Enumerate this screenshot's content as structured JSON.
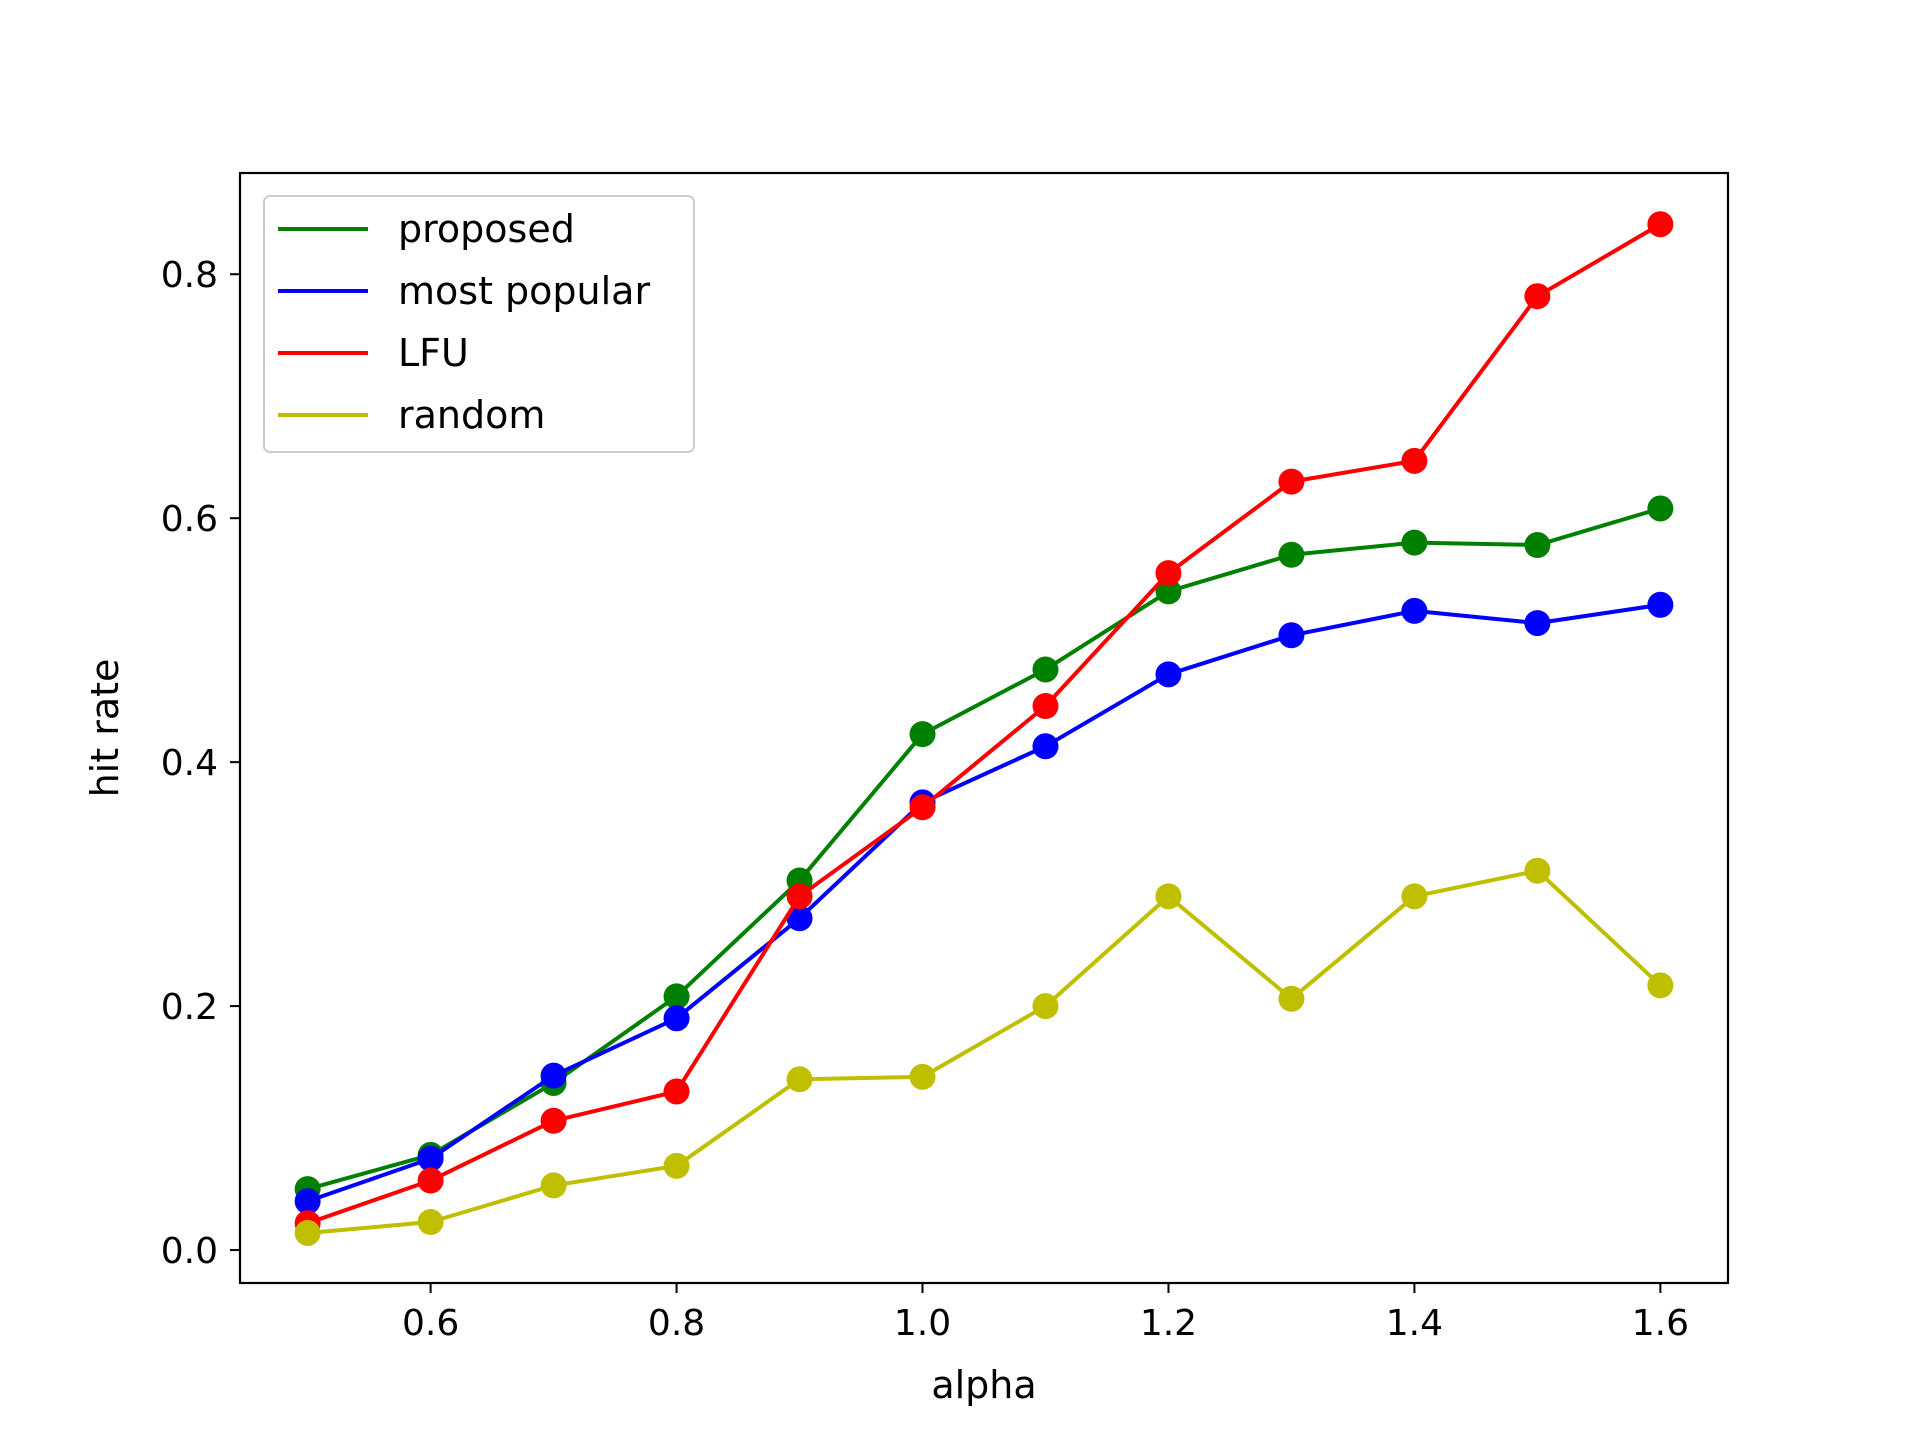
{
  "chart_data": {
    "type": "line",
    "title": "",
    "xlabel": "alpha",
    "ylabel": "hit rate",
    "x": [
      0.5,
      0.6,
      0.7,
      0.8,
      0.9,
      1.0,
      1.1,
      1.2,
      1.3,
      1.4,
      1.5,
      1.6
    ],
    "xlim": [
      0.445,
      1.655
    ],
    "ylim": [
      -0.027,
      0.883
    ],
    "xticks": [
      "0.6",
      "0.8",
      "1.0",
      "1.2",
      "1.4",
      "1.6"
    ],
    "yticks": [
      "0.0",
      "0.2",
      "0.4",
      "0.6",
      "0.8"
    ],
    "grid": false,
    "legend_position": "top-left",
    "markers": "circle",
    "series": [
      {
        "name": "proposed",
        "color": "#008000",
        "values": [
          0.05,
          0.078,
          0.137,
          0.208,
          0.303,
          0.423,
          0.476,
          0.54,
          0.57,
          0.58,
          0.578,
          0.608
        ]
      },
      {
        "name": "most popular",
        "color": "#0000ff",
        "values": [
          0.04,
          0.075,
          0.143,
          0.19,
          0.272,
          0.367,
          0.413,
          0.472,
          0.504,
          0.524,
          0.514,
          0.529
        ]
      },
      {
        "name": "LFU",
        "color": "#ff0000",
        "values": [
          0.022,
          0.057,
          0.106,
          0.13,
          0.29,
          0.363,
          0.446,
          0.555,
          0.63,
          0.647,
          0.782,
          0.841
        ]
      },
      {
        "name": "random",
        "color": "#bfbf00",
        "values": [
          0.014,
          0.023,
          0.053,
          0.069,
          0.14,
          0.142,
          0.2,
          0.29,
          0.206,
          0.29,
          0.311,
          0.217
        ]
      }
    ]
  }
}
